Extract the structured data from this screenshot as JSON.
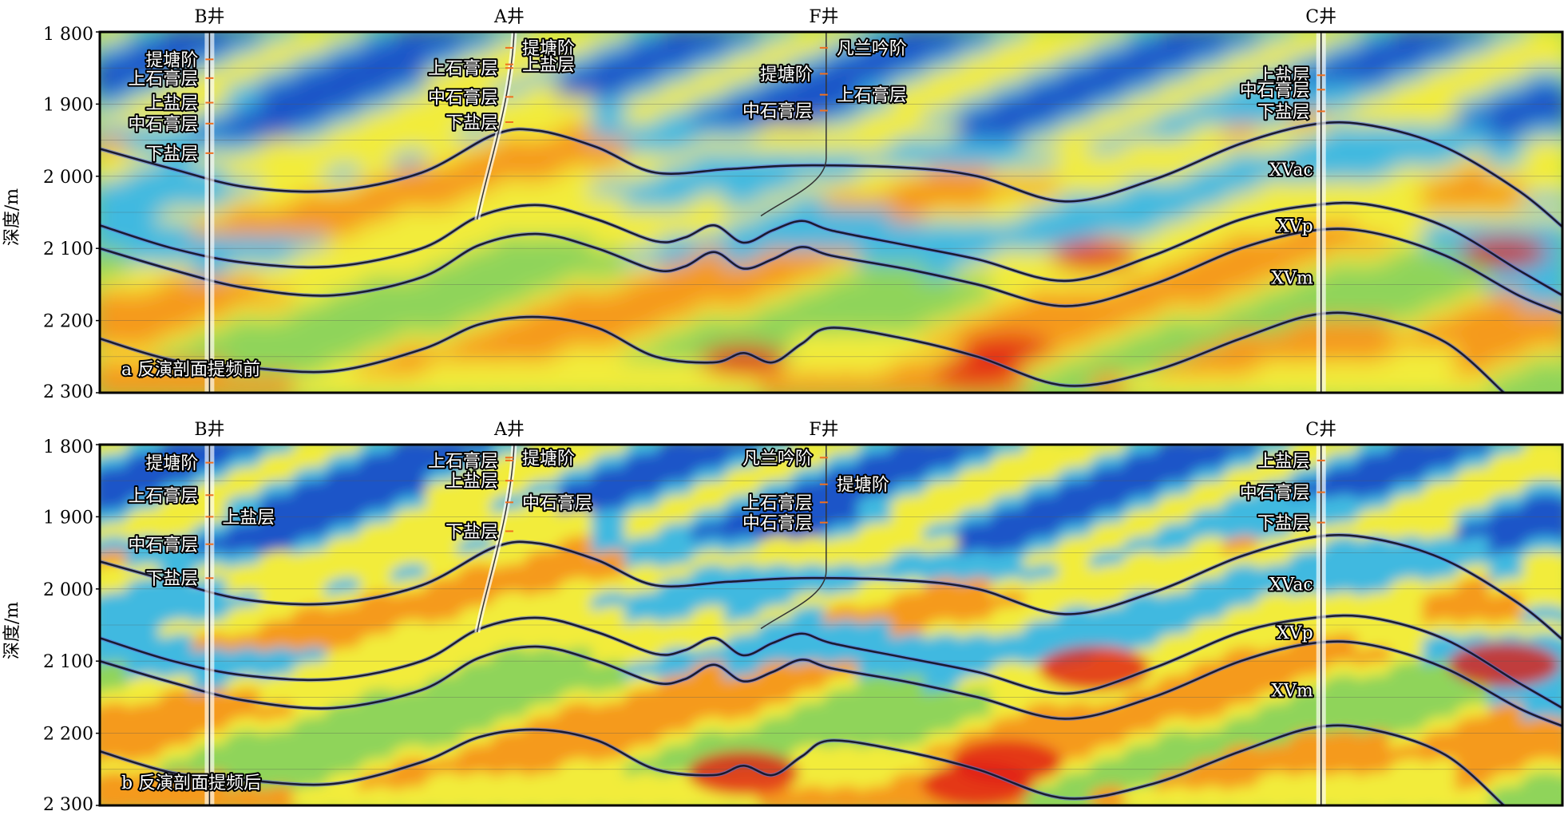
{
  "panels": [
    {
      "sublabel": "a 反演剖面提频前",
      "wells": [
        {
          "name": "B井",
          "x": 0.075
        },
        {
          "name": "A井",
          "x": 0.28
        },
        {
          "name": "F井",
          "x": 0.495
        },
        {
          "name": "C井",
          "x": 0.835
        }
      ],
      "well_annotations": [
        {
          "text": "提塘阶",
          "depth": 1838,
          "well": "B",
          "side": "left"
        },
        {
          "text": "上石膏层",
          "depth": 1864,
          "well": "B",
          "side": "left"
        },
        {
          "text": "上盐层",
          "depth": 1898,
          "well": "B",
          "side": "left"
        },
        {
          "text": "中石膏层",
          "depth": 1927,
          "well": "B",
          "side": "left"
        },
        {
          "text": "下盐层",
          "depth": 1968,
          "well": "B",
          "side": "left"
        },
        {
          "text": "上石膏层",
          "depth": 1850,
          "well": "A",
          "side": "left"
        },
        {
          "text": "提塘阶",
          "depth": 1822,
          "well": "A",
          "side": "right"
        },
        {
          "text": "上盐层",
          "depth": 1845,
          "well": "A",
          "side": "right"
        },
        {
          "text": "中石膏层",
          "depth": 1890,
          "well": "A",
          "side": "left"
        },
        {
          "text": "下盐层",
          "depth": 1925,
          "well": "A",
          "side": "left"
        },
        {
          "text": "凡兰吟阶",
          "depth": 1822,
          "well": "F",
          "side": "right"
        },
        {
          "text": "提塘阶",
          "depth": 1858,
          "well": "F",
          "side": "left"
        },
        {
          "text": "上石膏层",
          "depth": 1887,
          "well": "F",
          "side": "right"
        },
        {
          "text": "中石膏层",
          "depth": 1909,
          "well": "F",
          "side": "left"
        },
        {
          "text": "上盐层",
          "depth": 1860,
          "well": "C",
          "side": "left"
        },
        {
          "text": "中石膏层",
          "depth": 1880,
          "well": "C",
          "side": "left"
        },
        {
          "text": "下盐层",
          "depth": 1910,
          "well": "C",
          "side": "left"
        }
      ],
      "horizon_labels": [
        {
          "text": "XVac",
          "depth": 1990
        },
        {
          "text": "XVp",
          "depth": 2068
        },
        {
          "text": "XVm",
          "depth": 2140
        }
      ]
    },
    {
      "sublabel": "b 反演剖面提频后",
      "wells": [
        {
          "name": "B井",
          "x": 0.075
        },
        {
          "name": "A井",
          "x": 0.28
        },
        {
          "name": "F井",
          "x": 0.495
        },
        {
          "name": "C井",
          "x": 0.835
        }
      ],
      "well_annotations": [
        {
          "text": "提塘阶",
          "depth": 1825,
          "well": "B",
          "side": "left"
        },
        {
          "text": "上石膏层",
          "depth": 1870,
          "well": "B",
          "side": "left"
        },
        {
          "text": "上盐层",
          "depth": 1900,
          "well": "B",
          "side": "right"
        },
        {
          "text": "中石膏层",
          "depth": 1938,
          "well": "B",
          "side": "left"
        },
        {
          "text": "下盐层",
          "depth": 1985,
          "well": "B",
          "side": "left"
        },
        {
          "text": "上石膏层",
          "depth": 1822,
          "well": "A",
          "side": "left"
        },
        {
          "text": "提塘阶",
          "depth": 1818,
          "well": "A",
          "side": "right"
        },
        {
          "text": "上盐层",
          "depth": 1850,
          "well": "A",
          "side": "left"
        },
        {
          "text": "中石膏层",
          "depth": 1880,
          "well": "A",
          "side": "right"
        },
        {
          "text": "下盐层",
          "depth": 1920,
          "well": "A",
          "side": "left"
        },
        {
          "text": "凡兰吟阶",
          "depth": 1818,
          "well": "F",
          "side": "left"
        },
        {
          "text": "提塘阶",
          "depth": 1855,
          "well": "F",
          "side": "right"
        },
        {
          "text": "上石膏层",
          "depth": 1880,
          "well": "F",
          "side": "left"
        },
        {
          "text": "中石膏层",
          "depth": 1908,
          "well": "F",
          "side": "left"
        },
        {
          "text": "上盐层",
          "depth": 1822,
          "well": "C",
          "side": "left"
        },
        {
          "text": "中石膏层",
          "depth": 1866,
          "well": "C",
          "side": "left"
        },
        {
          "text": "下盐层",
          "depth": 1908,
          "well": "C",
          "side": "left"
        }
      ],
      "horizon_labels": [
        {
          "text": "XVac",
          "depth": 1993
        },
        {
          "text": "XVp",
          "depth": 2060
        },
        {
          "text": "XVm",
          "depth": 2140
        }
      ]
    }
  ],
  "y_axis": {
    "label": "深度/m",
    "ticks": [
      "1 800",
      "1 900",
      "2 000",
      "2 100",
      "2 200",
      "2 300"
    ],
    "min": 1800,
    "max": 2300
  },
  "horizons": [
    {
      "name": "XVac",
      "points": [
        [
          0,
          1962
        ],
        [
          0.05,
          1990
        ],
        [
          0.1,
          2015
        ],
        [
          0.16,
          2020
        ],
        [
          0.22,
          1995
        ],
        [
          0.27,
          1942
        ],
        [
          0.3,
          1937
        ],
        [
          0.34,
          1960
        ],
        [
          0.38,
          1995
        ],
        [
          0.43,
          1990
        ],
        [
          0.48,
          1985
        ],
        [
          0.55,
          1988
        ],
        [
          0.6,
          2000
        ],
        [
          0.66,
          2035
        ],
        [
          0.72,
          2005
        ],
        [
          0.78,
          1955
        ],
        [
          0.83,
          1928
        ],
        [
          0.87,
          1930
        ],
        [
          0.92,
          1960
        ],
        [
          0.97,
          2020
        ],
        [
          1,
          2070
        ]
      ]
    },
    {
      "name": "XVp",
      "points": [
        [
          0,
          2068
        ],
        [
          0.05,
          2100
        ],
        [
          0.1,
          2120
        ],
        [
          0.16,
          2125
        ],
        [
          0.22,
          2100
        ],
        [
          0.26,
          2055
        ],
        [
          0.3,
          2040
        ],
        [
          0.34,
          2060
        ],
        [
          0.38,
          2090
        ],
        [
          0.4,
          2085
        ],
        [
          0.42,
          2068
        ],
        [
          0.44,
          2092
        ],
        [
          0.46,
          2075
        ],
        [
          0.48,
          2062
        ],
        [
          0.5,
          2075
        ],
        [
          0.55,
          2095
        ],
        [
          0.6,
          2115
        ],
        [
          0.66,
          2145
        ],
        [
          0.72,
          2110
        ],
        [
          0.78,
          2060
        ],
        [
          0.83,
          2040
        ],
        [
          0.87,
          2040
        ],
        [
          0.92,
          2070
        ],
        [
          0.97,
          2130
        ],
        [
          1,
          2165
        ]
      ]
    },
    {
      "name": "XVm",
      "points": [
        [
          0,
          2100
        ],
        [
          0.05,
          2130
        ],
        [
          0.1,
          2155
        ],
        [
          0.16,
          2165
        ],
        [
          0.22,
          2140
        ],
        [
          0.26,
          2095
        ],
        [
          0.3,
          2080
        ],
        [
          0.34,
          2100
        ],
        [
          0.38,
          2130
        ],
        [
          0.4,
          2125
        ],
        [
          0.42,
          2105
        ],
        [
          0.44,
          2128
        ],
        [
          0.46,
          2115
        ],
        [
          0.48,
          2098
        ],
        [
          0.5,
          2110
        ],
        [
          0.55,
          2128
        ],
        [
          0.6,
          2150
        ],
        [
          0.66,
          2180
        ],
        [
          0.72,
          2150
        ],
        [
          0.78,
          2100
        ],
        [
          0.83,
          2075
        ],
        [
          0.87,
          2078
        ],
        [
          0.92,
          2110
        ],
        [
          0.97,
          2165
        ],
        [
          1,
          2190
        ]
      ]
    },
    {
      "name": "base",
      "points": [
        [
          0,
          2225
        ],
        [
          0.05,
          2255
        ],
        [
          0.1,
          2265
        ],
        [
          0.16,
          2270
        ],
        [
          0.22,
          2240
        ],
        [
          0.26,
          2205
        ],
        [
          0.3,
          2195
        ],
        [
          0.34,
          2210
        ],
        [
          0.38,
          2250
        ],
        [
          0.42,
          2258
        ],
        [
          0.44,
          2245
        ],
        [
          0.46,
          2258
        ],
        [
          0.48,
          2232
        ],
        [
          0.5,
          2210
        ],
        [
          0.55,
          2225
        ],
        [
          0.6,
          2250
        ],
        [
          0.66,
          2290
        ],
        [
          0.72,
          2270
        ],
        [
          0.78,
          2225
        ],
        [
          0.83,
          2192
        ],
        [
          0.87,
          2195
        ],
        [
          0.92,
          2230
        ],
        [
          0.96,
          2300
        ]
      ]
    }
  ],
  "colors": {
    "blue": "#1e55c8",
    "cyan": "#41b9e0",
    "green": "#8fd45a",
    "yellow": "#f2ec3a",
    "orange": "#f59a1e",
    "red": "#e01e14",
    "horizon": "#1a1a2e"
  }
}
